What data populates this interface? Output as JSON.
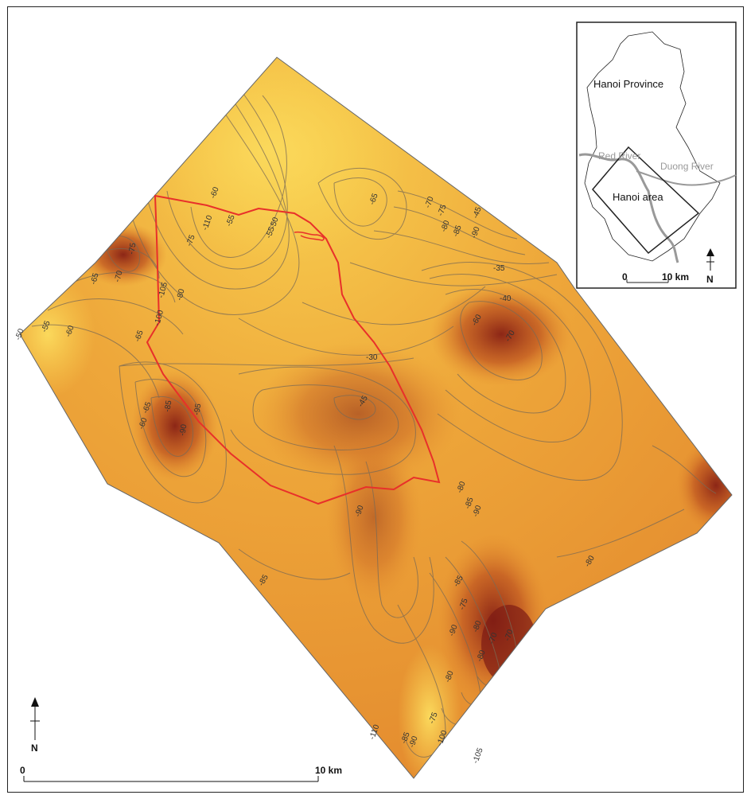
{
  "map": {
    "contour_labels": [
      "-50",
      "-55",
      "-60",
      "-65",
      "-70",
      "-75",
      "-80",
      "-85",
      "-90",
      "-95",
      "-100",
      "-105",
      "-110",
      "-55",
      "-60",
      "-65",
      "-70",
      "-75",
      "-80",
      "-85",
      "-90",
      "-45",
      "-50",
      "-55",
      "-35",
      "-30",
      "-45",
      "-40",
      "-60",
      "-70",
      "-80",
      "-85",
      "-90",
      "-85",
      "-75",
      "-80",
      "-90",
      "-80",
      "-70",
      "-70",
      "-80",
      "-75",
      "-85",
      "-90",
      "-100",
      "-105",
      "-110",
      "-75",
      "-65",
      "-60",
      "-65",
      "-80",
      "-85",
      "-90"
    ],
    "colors": {
      "light": "#f7c94a",
      "mid": "#e89a33",
      "dark": "#b5461f",
      "darkest": "#7e1b14",
      "boundary": "#e8302a"
    }
  },
  "inset": {
    "province_label": "Hanoi Province",
    "red_river_label": "Red River",
    "duong_river_label": "Duong River",
    "area_label": "Hanoi area",
    "scale_start": "0",
    "scale_end": "10 km",
    "north": "N"
  },
  "main_scale": {
    "start": "0",
    "end": "10 km"
  },
  "north_arrow": {
    "label": "N"
  }
}
